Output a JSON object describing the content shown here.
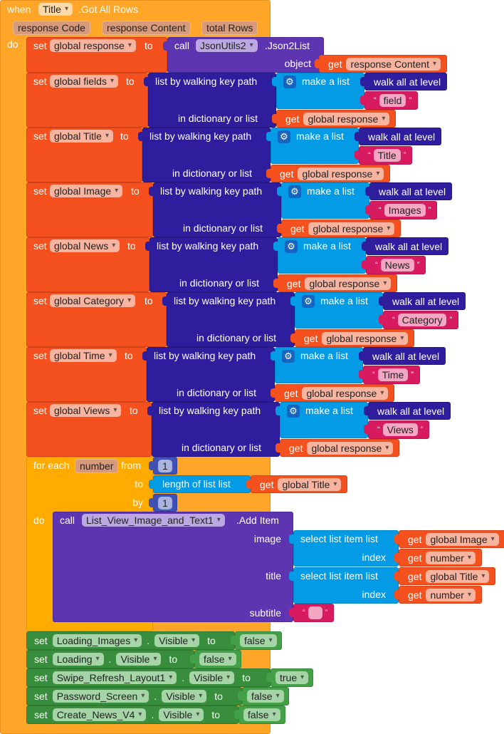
{
  "event": {
    "when": "when",
    "component": "Title",
    "event_name": ".Got All Rows",
    "params": [
      "response Code",
      "response Content",
      "total Rows"
    ],
    "do": "do"
  },
  "keywords": {
    "set": "set",
    "to": "to",
    "get": "get",
    "call": "call",
    "object": "object",
    "walk_path": "list by walking key path",
    "in_dict": "in dictionary or list",
    "make_list": "make a list",
    "walk_all": "walk all at level",
    "length_of_list": "length of list  list",
    "select_item": "select list item  list",
    "index": "index",
    "for_each": "for each",
    "from": "from",
    "by": "by",
    "do": "do",
    "dot": ".",
    "open_quote": "“",
    "close_quote": "”"
  },
  "init": {
    "variable": "global response",
    "component": "JsonUtils2",
    "method": ".Json2List",
    "arg_label": "object",
    "arg_value": "response Content"
  },
  "walks": [
    {
      "variable": "global fields",
      "key": "field",
      "source": "global response"
    },
    {
      "variable": "global Title",
      "key": "Title",
      "source": "global response"
    },
    {
      "variable": "global Image",
      "key": "Images",
      "source": "global response"
    },
    {
      "variable": "global News",
      "key": "News",
      "source": "global response"
    },
    {
      "variable": "global Category",
      "key": "Category",
      "source": "global response"
    },
    {
      "variable": "global Time",
      "key": "Time",
      "source": "global response"
    },
    {
      "variable": "global Views",
      "key": "Views",
      "source": "global response"
    }
  ],
  "loop": {
    "variable": "number",
    "from": "1",
    "by": "1",
    "list": "global Title",
    "call": {
      "component": "List_View_Image_and_Text1",
      "method": ".Add Item",
      "args": [
        {
          "label": "image",
          "list": "global Image",
          "index": "number"
        },
        {
          "label": "title",
          "list": "global Title",
          "index": "number"
        },
        {
          "label": "subtitle",
          "text": ""
        }
      ]
    }
  },
  "setters": [
    {
      "component": "Loading_Images",
      "property": "Visible",
      "value": "false"
    },
    {
      "component": "Loading",
      "property": "Visible",
      "value": "false"
    },
    {
      "component": "Swipe_Refresh_Layout1",
      "property": "Visible",
      "value": "true"
    },
    {
      "component": "Password_Screen",
      "property": "Visible",
      "value": "false"
    },
    {
      "component": "Create_News_V4",
      "property": "Visible",
      "value": "false"
    }
  ]
}
